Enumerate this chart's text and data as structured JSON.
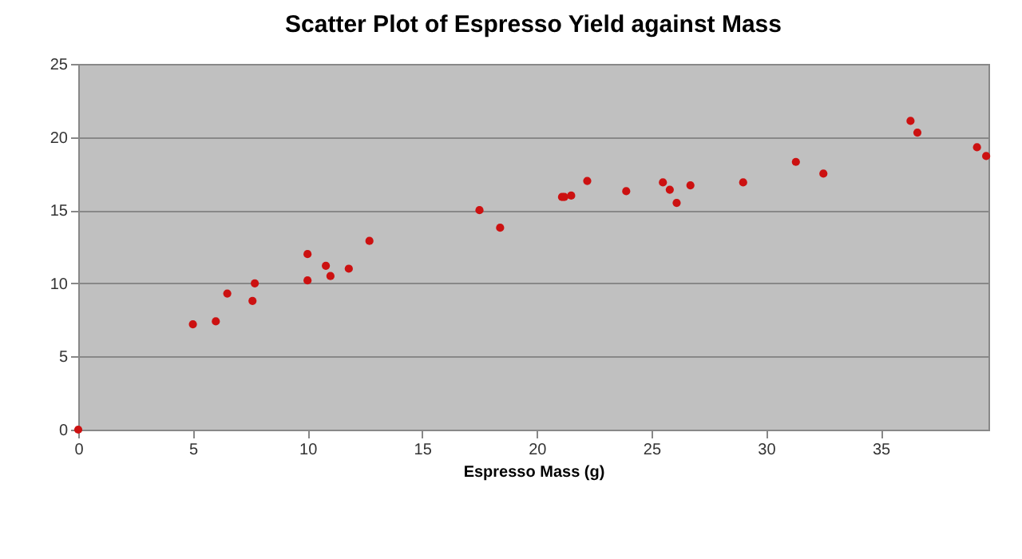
{
  "chart_data": {
    "type": "scatter",
    "title": "Scatter Plot of Espresso Yield against Mass",
    "xlabel": "Espresso Mass (g)",
    "x": [
      0,
      5.0,
      6.0,
      6.5,
      7.6,
      7.7,
      10.0,
      10.0,
      10.8,
      11.0,
      11.8,
      12.7,
      17.5,
      18.4,
      21.1,
      21.2,
      21.5,
      22.2,
      23.9,
      25.5,
      25.8,
      26.1,
      26.7,
      29.0,
      31.3,
      32.5,
      36.3,
      36.6,
      39.2,
      39.6
    ],
    "values": [
      0,
      7.2,
      7.4,
      9.3,
      8.8,
      10.0,
      12.0,
      10.2,
      11.2,
      10.5,
      11.0,
      12.9,
      15.0,
      13.8,
      15.9,
      15.9,
      16.0,
      17.0,
      16.3,
      16.9,
      16.4,
      15.5,
      16.7,
      16.9,
      18.3,
      17.5,
      21.1,
      20.3,
      19.3,
      18.7
    ],
    "color": "#cc1111",
    "marker": "circle",
    "grid": "y",
    "xlim": [
      0,
      39.7
    ],
    "xticks": [
      0,
      5,
      10,
      15,
      20,
      25,
      30,
      35
    ],
    "ylim": [
      0,
      25
    ],
    "yticks": [
      0,
      5,
      10,
      15,
      20,
      25
    ]
  }
}
